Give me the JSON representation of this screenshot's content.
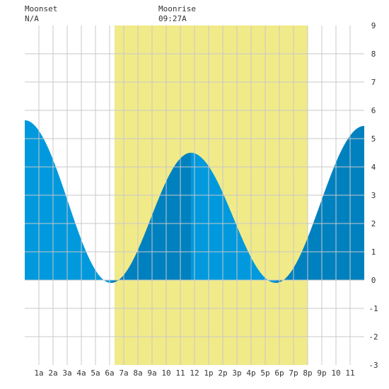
{
  "moon": {
    "moonset_label": "Moonset",
    "moonset_time": "N/A",
    "moonrise_label": "Moonrise",
    "moonrise_time": "09:27A"
  },
  "colors": {
    "daylight": "#f1ea89",
    "tide_light": "#0099dd",
    "tide_dark": "#0081bf",
    "grid": "#c8c8c8",
    "text": "#333333"
  },
  "chart_data": {
    "type": "area",
    "title": "",
    "xlabel": "",
    "ylabel": "",
    "xlim": [
      0,
      24
    ],
    "ylim": [
      -3,
      9
    ],
    "grid": true,
    "x_tick_labels": [
      "1a",
      "2a",
      "3a",
      "4a",
      "5a",
      "6a",
      "7a",
      "8a",
      "9a",
      "10",
      "11",
      "12",
      "1p",
      "2p",
      "3p",
      "4p",
      "5p",
      "6p",
      "7p",
      "8p",
      "9p",
      "10",
      "11"
    ],
    "y_tick_labels": [
      "9",
      "8",
      "7",
      "6",
      "5",
      "4",
      "3",
      "2",
      "1",
      "0",
      "-1",
      "-2",
      "-3"
    ],
    "daylight": {
      "start": 6.35,
      "end": 20.0
    },
    "extremes": [
      {
        "x": 0.0,
        "y": 5.65
      },
      {
        "x": 6.1,
        "y": -0.1
      },
      {
        "x": 11.75,
        "y": 4.5
      },
      {
        "x": 17.75,
        "y": -0.1
      },
      {
        "x": 24.0,
        "y": 5.45
      }
    ],
    "series": [
      {
        "x": [
          0,
          0.5,
          1,
          1.5,
          2,
          2.5,
          3,
          3.5,
          4,
          4.5,
          5,
          5.5,
          6,
          6.5,
          7,
          7.5,
          8,
          8.5,
          9,
          9.5,
          10,
          10.5,
          11,
          11.5,
          12,
          12.5,
          13,
          13.5,
          14,
          14.5,
          15,
          15.5,
          16,
          16.5,
          17,
          17.5,
          18,
          18.5,
          19,
          19.5,
          20,
          20.5,
          21,
          21.5,
          22,
          22.5,
          23,
          23.5,
          24
        ],
        "y": [
          5.65,
          5.55,
          5.27,
          4.82,
          4.23,
          3.56,
          2.84,
          2.13,
          1.47,
          0.91,
          0.44,
          0.11,
          -0.09,
          -0.04,
          0.24,
          0.71,
          1.32,
          2.0,
          2.68,
          3.3,
          3.83,
          4.22,
          4.44,
          4.49,
          4.45,
          4.19,
          3.72,
          3.1,
          2.4,
          1.68,
          1.01,
          0.47,
          0.1,
          -0.08,
          -0.09,
          -0.09,
          -0.07,
          0.09,
          0.48,
          1.04,
          1.72,
          2.48,
          3.23,
          3.92,
          4.5,
          4.94,
          5.24,
          5.41,
          5.45
        ]
      }
    ]
  }
}
